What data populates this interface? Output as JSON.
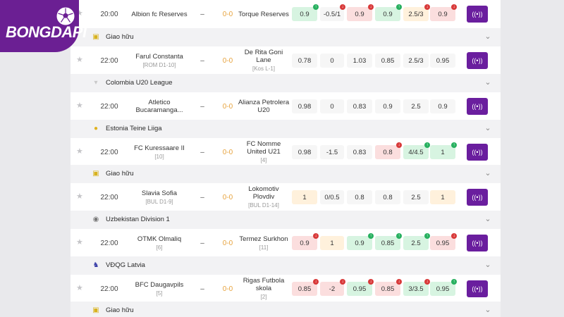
{
  "brand": {
    "logo_text": "BONGDAPI"
  },
  "icons": {
    "star": "star-icon",
    "chevron": "chevron-down-icon",
    "live": "live-stream-icon"
  },
  "colors": {
    "brand": "#6b1f93",
    "score": "#e7a33e",
    "up": "#27b05f",
    "down": "#d83a3a"
  },
  "leagues": [
    {
      "name": "Giao hữu",
      "icon": "friendly-icon"
    },
    {
      "name": "Colombia U20 League",
      "icon": "colombia-flag-icon"
    },
    {
      "name": "Estonia Teine Liiga",
      "icon": "estonia-league-icon"
    },
    {
      "name": "Giao hữu",
      "icon": "friendly-icon"
    },
    {
      "name": "Uzbekistan Division 1",
      "icon": "uzbekistan-league-icon"
    },
    {
      "name": "VĐQG Latvia",
      "icon": "latvia-league-icon"
    },
    {
      "name": "Giao hữu",
      "icon": "friendly-icon"
    }
  ],
  "matches": [
    {
      "time": "20:00",
      "home": "Albion fc Reserves",
      "home_rank": "",
      "dash": "–",
      "score": "0-0",
      "away": "Torque Reserves",
      "away_rank": "",
      "odds": [
        "0.9",
        "-0.5/1",
        "0.9",
        "0.9",
        "2.5/3",
        "0.9"
      ],
      "odd_styles": [
        "up",
        "plain",
        "down",
        "up",
        "warm",
        "down"
      ],
      "badges": [
        "up",
        "down",
        "down",
        "up",
        "down",
        "down"
      ]
    },
    {
      "time": "22:00",
      "home": "Farul Constanta",
      "home_rank": "[ROM D1-10]",
      "dash": "–",
      "score": "0-0",
      "away": "De Rita Goni Lane",
      "away_rank": "[Kos L-1]",
      "odds": [
        "0.78",
        "0",
        "1.03",
        "0.85",
        "2.5/3",
        "0.95"
      ],
      "odd_styles": [
        "plain",
        "plain",
        "plain",
        "plain",
        "plain",
        "plain"
      ],
      "badges": [
        "",
        "",
        "",
        "",
        "",
        ""
      ]
    },
    {
      "time": "22:00",
      "home": "Atletico Bucaramanga...",
      "home_rank": "",
      "dash": "–",
      "score": "0-0",
      "away": "Alianza Petrolera U20",
      "away_rank": "",
      "odds": [
        "0.98",
        "0",
        "0.83",
        "0.9",
        "2.5",
        "0.9"
      ],
      "odd_styles": [
        "plain",
        "plain",
        "plain",
        "plain",
        "plain",
        "plain"
      ],
      "badges": [
        "",
        "",
        "",
        "",
        "",
        ""
      ]
    },
    {
      "time": "22:00",
      "home": "FC Kuressaare II",
      "home_rank": "[10]",
      "dash": "–",
      "score": "0-0",
      "away": "FC Nomme United U21",
      "away_rank": "[4]",
      "odds": [
        "0.98",
        "-1.5",
        "0.83",
        "0.8",
        "4/4.5",
        "1"
      ],
      "odd_styles": [
        "plain",
        "plain",
        "plain",
        "down",
        "up",
        "up"
      ],
      "badges": [
        "",
        "",
        "",
        "down",
        "up",
        "up"
      ]
    },
    {
      "time": "22:00",
      "home": "Slavia Sofia",
      "home_rank": "[BUL D1-9]",
      "dash": "–",
      "score": "0-0",
      "away": "Lokomotiv Plovdiv",
      "away_rank": "[BUL D1-14]",
      "odds": [
        "1",
        "0/0.5",
        "0.8",
        "0.8",
        "2.5",
        "1"
      ],
      "odd_styles": [
        "warm",
        "plain",
        "plain",
        "plain",
        "plain",
        "warm"
      ],
      "badges": [
        "",
        "",
        "",
        "",
        "",
        ""
      ]
    },
    {
      "time": "22:00",
      "home": "OTMK Olmaliq",
      "home_rank": "[6]",
      "dash": "–",
      "score": "0-0",
      "away": "Termez Surkhon",
      "away_rank": "[11]",
      "odds": [
        "0.9",
        "1",
        "0.9",
        "0.85",
        "2.5",
        "0.95"
      ],
      "odd_styles": [
        "down",
        "warm",
        "up",
        "up",
        "up",
        "down"
      ],
      "badges": [
        "down",
        "",
        "up",
        "up",
        "up",
        "down"
      ]
    },
    {
      "time": "22:00",
      "home": "BFC Daugavpils",
      "home_rank": "[5]",
      "dash": "–",
      "score": "0-0",
      "away": "Rigas Futbola skola",
      "away_rank": "[2]",
      "odds": [
        "0.85",
        "-2",
        "0.95",
        "0.85",
        "3/3.5",
        "0.95"
      ],
      "odd_styles": [
        "down",
        "down",
        "up",
        "down",
        "up",
        "up"
      ],
      "badges": [
        "down",
        "down",
        "down",
        "down",
        "down",
        "up"
      ]
    }
  ]
}
